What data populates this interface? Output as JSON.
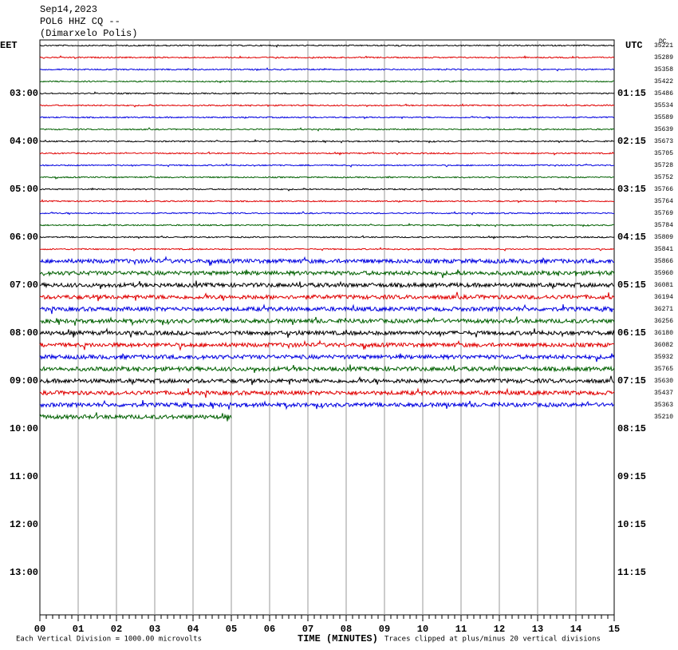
{
  "header": {
    "date": "Sep14,2023",
    "station": "POL6 HHZ CQ --",
    "location": "(Dimarxelo Polis)"
  },
  "left_zone": "EET",
  "right_zone": "UTC",
  "dc_label": "DC",
  "left_times": [
    "03:00",
    "04:00",
    "05:00",
    "06:00",
    "07:00",
    "08:00",
    "09:00",
    "10:00",
    "11:00",
    "12:00",
    "13:00"
  ],
  "right_times": [
    "01:15",
    "02:15",
    "03:15",
    "04:15",
    "05:15",
    "06:15",
    "07:15",
    "08:15",
    "09:15",
    "10:15",
    "11:15"
  ],
  "dc_values": [
    "35221",
    "35289",
    "35358",
    "35422",
    "35486",
    "35534",
    "35589",
    "35639",
    "35673",
    "35705",
    "35728",
    "35752",
    "35766",
    "35764",
    "35769",
    "35784",
    "35809",
    "35841",
    "35866",
    "35960",
    "36081",
    "36194",
    "36271",
    "36256",
    "36180",
    "36082",
    "35932",
    "35765",
    "35630",
    "35437",
    "35363",
    "35210"
  ],
  "minutes": [
    "00",
    "01",
    "02",
    "03",
    "04",
    "05",
    "06",
    "07",
    "08",
    "09",
    "10",
    "11",
    "12",
    "13",
    "14",
    "15"
  ],
  "x_axis_title": "TIME (MINUTES)",
  "scale_note": "Each Vertical Division = 1000.00 microvolts",
  "clip_note": "Traces clipped at plus/minus 20 vertical divisions"
}
